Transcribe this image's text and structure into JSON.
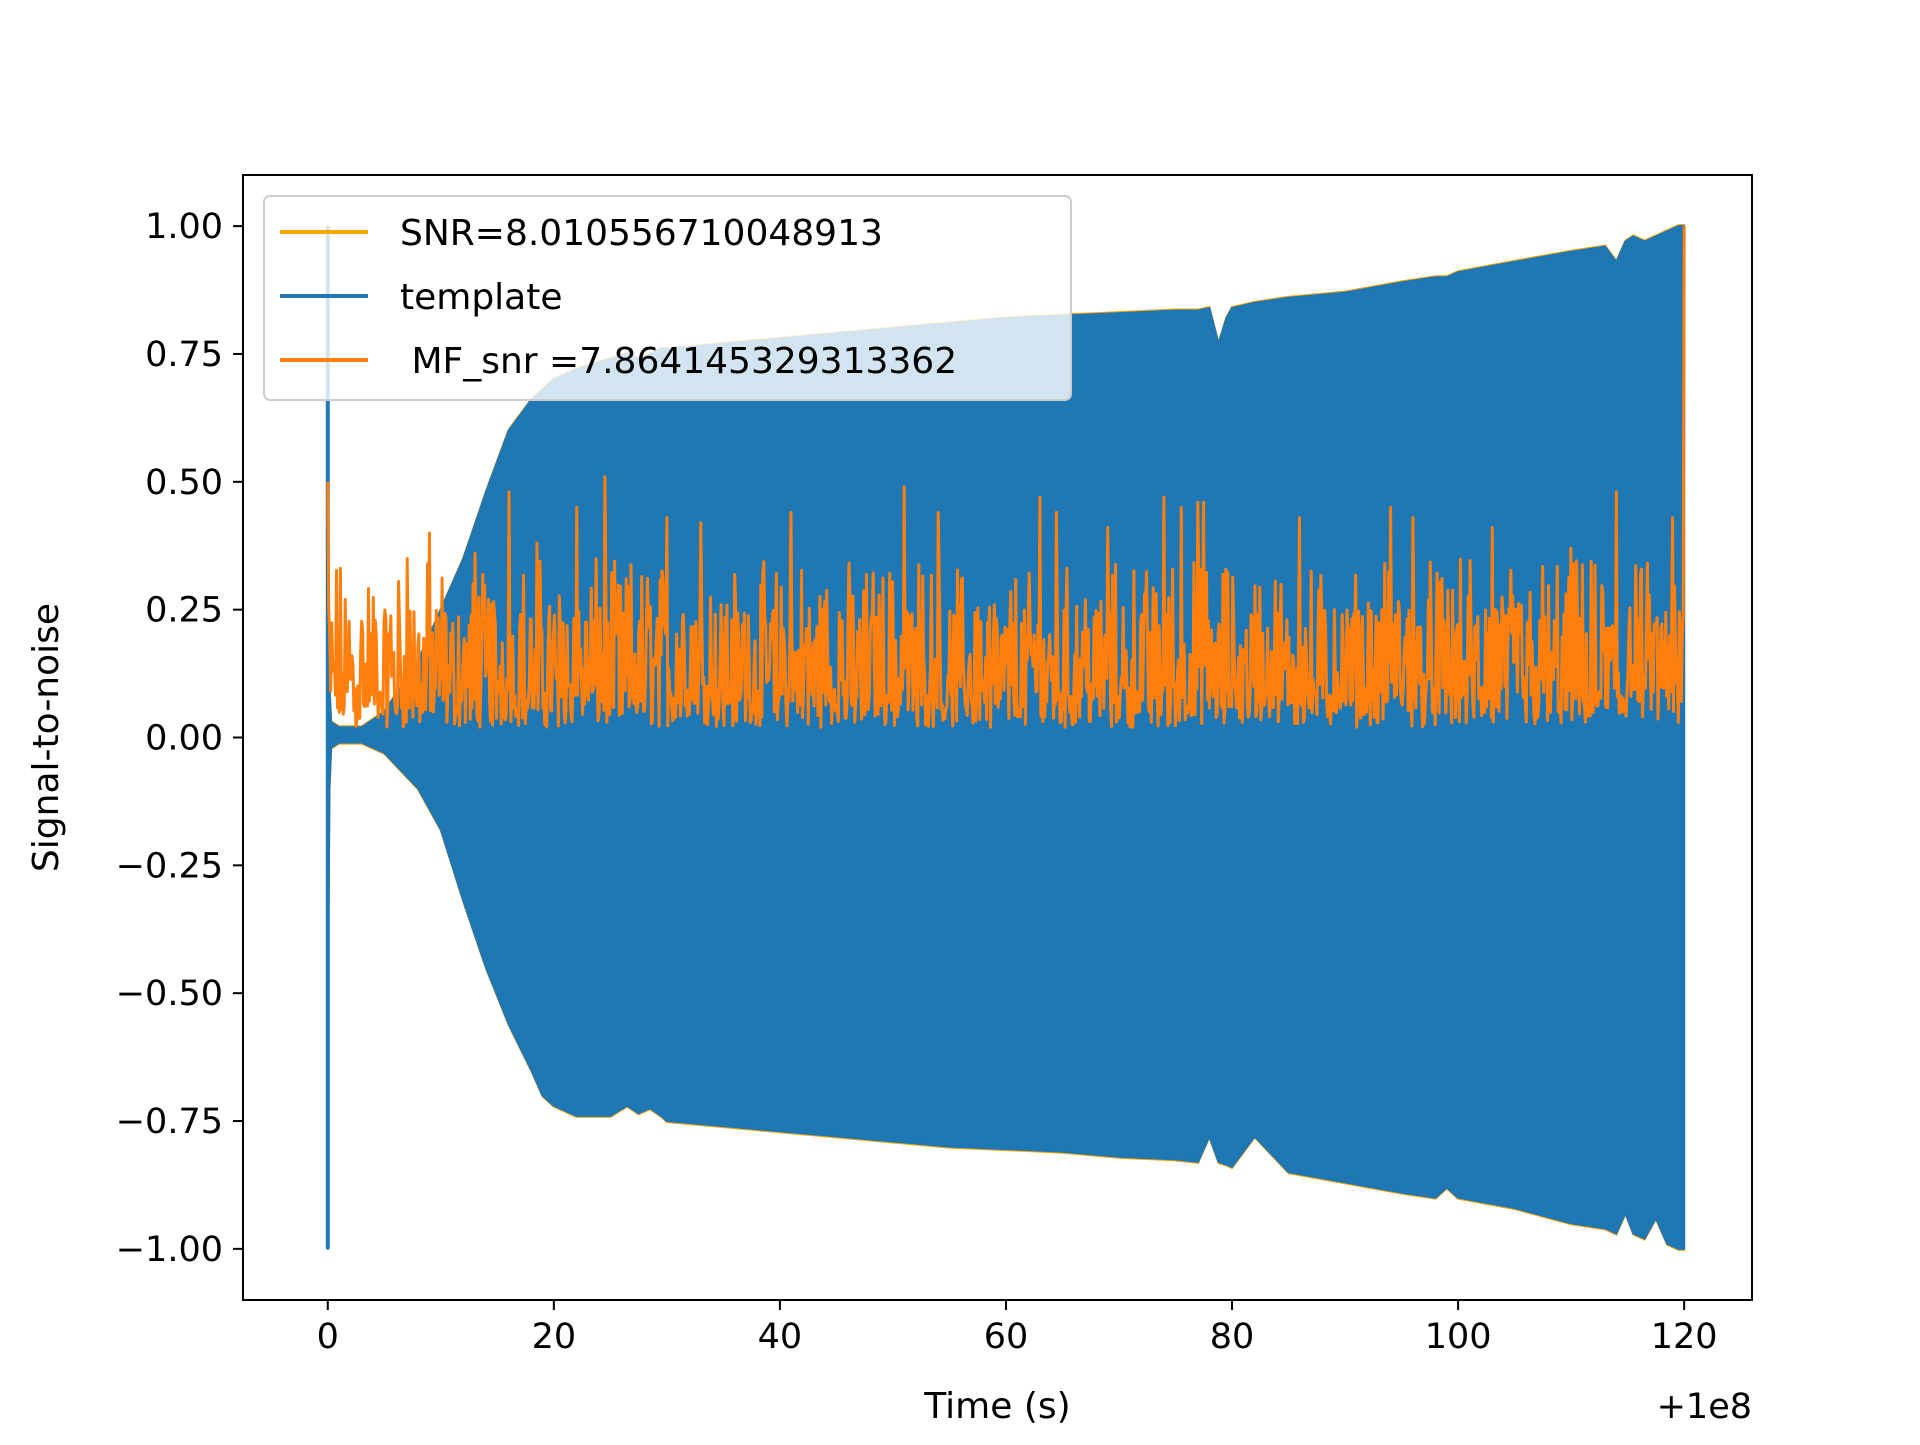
{
  "chart_data": {
    "type": "line",
    "title": "",
    "xlabel": "Time (s)",
    "ylabel": "Signal-to-noise",
    "x_offset_label": "+1e8",
    "xlim": [
      -7.5,
      126
    ],
    "ylim": [
      -1.1,
      1.1
    ],
    "xticks": [
      0,
      20,
      40,
      60,
      80,
      100,
      120
    ],
    "xtick_labels": [
      "0",
      "20",
      "40",
      "60",
      "80",
      "100",
      "120"
    ],
    "yticks": [
      1.0,
      0.75,
      0.5,
      0.25,
      0.0,
      -0.25,
      -0.5,
      -0.75,
      -1.0
    ],
    "ytick_labels": [
      "1.00",
      "0.75",
      "0.50",
      "0.25",
      "0.00",
      "−0.25",
      "−0.50",
      "−0.75",
      "−1.00"
    ],
    "grid": false,
    "legend_position": "top-left",
    "series": [
      {
        "name": "SNR=8.010556710048913",
        "color": "#ffa500",
        "description_kind": "envelope",
        "x": [
          0,
          120
        ],
        "values": [
          0,
          0
        ]
      },
      {
        "name": "template",
        "color": "#1f77b4",
        "kind": "oscillation_envelope",
        "x": [
          0,
          0.05,
          0.15,
          0.3,
          1,
          3,
          5,
          8,
          10,
          12,
          14,
          16,
          18,
          19,
          20,
          22,
          25,
          26.5,
          27.5,
          28.5,
          29.5,
          30,
          35,
          40,
          45,
          50,
          55,
          60,
          65,
          70,
          75,
          77,
          78,
          78.8,
          79.5,
          80,
          82,
          85,
          90,
          95,
          98,
          99,
          100,
          105,
          110,
          113,
          114,
          114.8,
          115.5,
          116.5,
          117.5,
          118.5,
          119.5,
          120
        ],
        "upper": [
          1.0,
          0.4,
          0.1,
          0.03,
          0.02,
          0.02,
          0.05,
          0.15,
          0.25,
          0.35,
          0.48,
          0.6,
          0.66,
          0.68,
          0.7,
          0.72,
          0.74,
          0.75,
          0.74,
          0.75,
          0.76,
          0.76,
          0.77,
          0.78,
          0.79,
          0.8,
          0.81,
          0.82,
          0.825,
          0.83,
          0.835,
          0.835,
          0.84,
          0.77,
          0.82,
          0.84,
          0.85,
          0.86,
          0.87,
          0.89,
          0.9,
          0.9,
          0.91,
          0.93,
          0.95,
          0.96,
          0.93,
          0.97,
          0.98,
          0.97,
          0.98,
          0.99,
          1.0,
          1.0
        ],
        "lower": [
          -1.0,
          -0.4,
          -0.1,
          -0.02,
          -0.01,
          -0.01,
          -0.03,
          -0.1,
          -0.18,
          -0.32,
          -0.45,
          -0.56,
          -0.65,
          -0.7,
          -0.72,
          -0.74,
          -0.74,
          -0.72,
          -0.735,
          -0.725,
          -0.74,
          -0.75,
          -0.76,
          -0.77,
          -0.78,
          -0.79,
          -0.8,
          -0.805,
          -0.81,
          -0.82,
          -0.825,
          -0.83,
          -0.78,
          -0.83,
          -0.835,
          -0.84,
          -0.78,
          -0.85,
          -0.87,
          -0.89,
          -0.9,
          -0.88,
          -0.9,
          -0.92,
          -0.95,
          -0.96,
          -0.97,
          -0.93,
          -0.97,
          -0.98,
          -0.94,
          -0.99,
          -1.0,
          -1.0
        ]
      },
      {
        "name": " MF_snr =7.864145329313362",
        "color": "#ff7f0e",
        "kind": "noisy_series",
        "x_range": [
          0,
          120
        ],
        "baseline_range": [
          0.02,
          0.12
        ],
        "typical_peak": 0.3,
        "peaks": [
          {
            "x": 0,
            "y": 0.5
          },
          {
            "x": 7,
            "y": 0.35
          },
          {
            "x": 9,
            "y": 0.4
          },
          {
            "x": 13,
            "y": 0.36
          },
          {
            "x": 16,
            "y": 0.48
          },
          {
            "x": 18.5,
            "y": 0.38
          },
          {
            "x": 22,
            "y": 0.45
          },
          {
            "x": 24.5,
            "y": 0.51
          },
          {
            "x": 30,
            "y": 0.43
          },
          {
            "x": 33,
            "y": 0.42
          },
          {
            "x": 41,
            "y": 0.44
          },
          {
            "x": 51,
            "y": 0.49
          },
          {
            "x": 54,
            "y": 0.44
          },
          {
            "x": 63,
            "y": 0.47
          },
          {
            "x": 64.5,
            "y": 0.44
          },
          {
            "x": 69,
            "y": 0.41
          },
          {
            "x": 74,
            "y": 0.47
          },
          {
            "x": 75.5,
            "y": 0.45
          },
          {
            "x": 77,
            "y": 0.46
          },
          {
            "x": 77.5,
            "y": 0.46
          },
          {
            "x": 86,
            "y": 0.43
          },
          {
            "x": 94,
            "y": 0.45
          },
          {
            "x": 96,
            "y": 0.43
          },
          {
            "x": 103,
            "y": 0.41
          },
          {
            "x": 110,
            "y": 0.37
          },
          {
            "x": 114,
            "y": 0.48
          },
          {
            "x": 119,
            "y": 0.43
          },
          {
            "x": 120,
            "y": 1.0
          }
        ]
      }
    ]
  }
}
